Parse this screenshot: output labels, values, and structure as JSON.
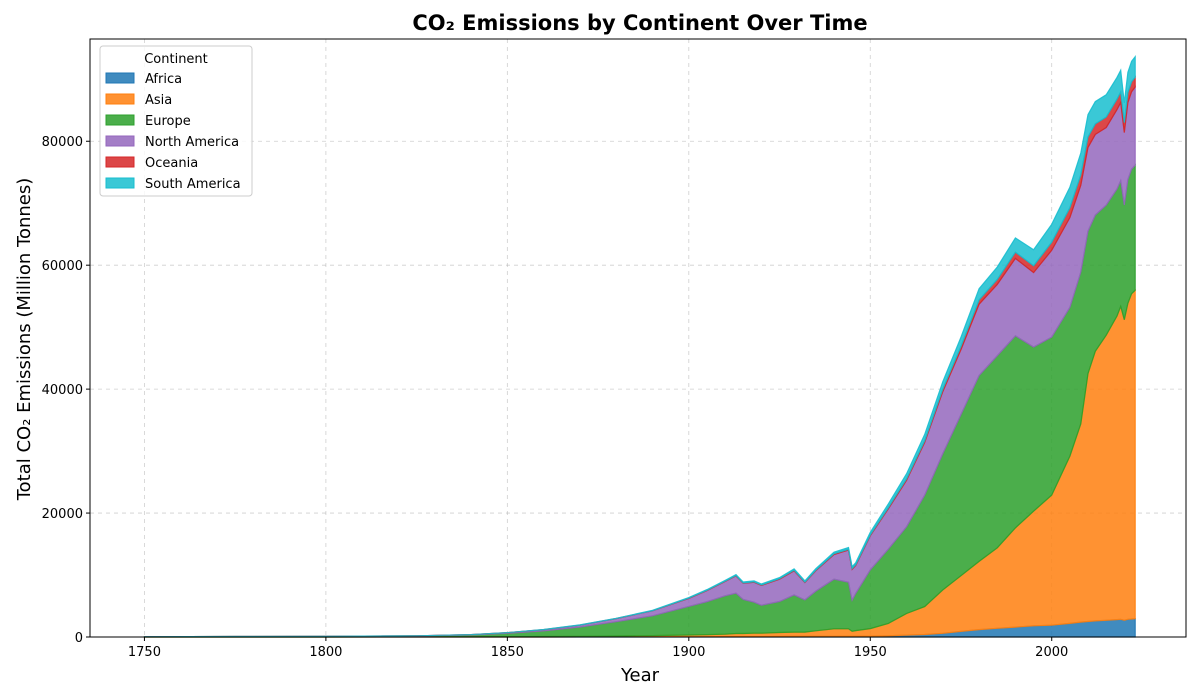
{
  "chart_data": {
    "type": "area",
    "stacked": true,
    "title": "CO₂ Emissions by Continent Over Time",
    "xlabel": "Year",
    "ylabel": "Total CO₂ Emissions (Million Tonnes)",
    "xlim": [
      1735,
      2037
    ],
    "ylim": [
      0,
      96500
    ],
    "xticks": [
      1750,
      1800,
      1850,
      1900,
      1950,
      2000
    ],
    "yticks": [
      0,
      20000,
      40000,
      60000,
      80000
    ],
    "grid": true,
    "legend": {
      "title": "Continent",
      "position": "top-left"
    },
    "x": [
      1750,
      1775,
      1800,
      1825,
      1840,
      1850,
      1860,
      1870,
      1880,
      1890,
      1900,
      1905,
      1910,
      1913,
      1915,
      1918,
      1920,
      1925,
      1929,
      1932,
      1935,
      1940,
      1944,
      1945,
      1946,
      1950,
      1955,
      1960,
      1965,
      1970,
      1975,
      1980,
      1985,
      1990,
      1995,
      2000,
      2005,
      2008,
      2010,
      2012,
      2015,
      2018,
      2019,
      2020,
      2021,
      2022,
      2023
    ],
    "series": [
      {
        "name": "Africa",
        "color": "#1f77b4",
        "values": [
          0,
          0,
          0,
          0,
          0,
          0,
          5,
          10,
          15,
          20,
          30,
          40,
          50,
          60,
          60,
          70,
          70,
          80,
          90,
          90,
          100,
          120,
          130,
          120,
          130,
          150,
          200,
          300,
          400,
          600,
          900,
          1200,
          1400,
          1600,
          1800,
          1900,
          2200,
          2400,
          2500,
          2600,
          2700,
          2800,
          2850,
          2700,
          2850,
          2900,
          2950
        ]
      },
      {
        "name": "Asia",
        "color": "#ff7f0e",
        "values": [
          0,
          0,
          0,
          20,
          30,
          50,
          80,
          100,
          150,
          200,
          300,
          350,
          400,
          500,
          500,
          550,
          550,
          650,
          700,
          700,
          900,
          1200,
          1200,
          800,
          900,
          1200,
          2000,
          3500,
          4500,
          7000,
          9000,
          11000,
          13000,
          16000,
          18500,
          21000,
          27000,
          32000,
          40000,
          43500,
          46000,
          49000,
          50500,
          48500,
          51000,
          52500,
          53000
        ]
      },
      {
        "name": "Europe",
        "color": "#2ca02c",
        "values": [
          50,
          80,
          100,
          150,
          300,
          550,
          900,
          1500,
          2300,
          3200,
          4600,
          5300,
          6200,
          6500,
          5500,
          5000,
          4500,
          5000,
          6000,
          5200,
          6400,
          8000,
          7500,
          5000,
          6000,
          9500,
          12000,
          14000,
          18000,
          22000,
          26000,
          30000,
          31000,
          31000,
          26500,
          25500,
          24000,
          24500,
          23000,
          22000,
          21000,
          20500,
          20300,
          18500,
          20000,
          20100,
          20200
        ]
      },
      {
        "name": "North America",
        "color": "#9467bd",
        "values": [
          0,
          0,
          0,
          20,
          50,
          100,
          200,
          300,
          500,
          800,
          1300,
          1800,
          2300,
          2800,
          2600,
          3200,
          3200,
          3600,
          3900,
          2800,
          3300,
          4000,
          5200,
          5000,
          4500,
          5500,
          6500,
          7500,
          8500,
          10000,
          10500,
          11500,
          11500,
          12500,
          12000,
          14000,
          14500,
          14000,
          13500,
          13000,
          12500,
          12800,
          12600,
          11700,
          12400,
          12500,
          12600
        ]
      },
      {
        "name": "Oceania",
        "color": "#d62728",
        "values": [
          0,
          0,
          0,
          0,
          0,
          5,
          10,
          15,
          20,
          30,
          50,
          55,
          65,
          70,
          75,
          80,
          80,
          90,
          100,
          90,
          100,
          120,
          130,
          130,
          130,
          150,
          200,
          250,
          300,
          400,
          500,
          700,
          800,
          1000,
          1100,
          1300,
          1600,
          1700,
          1700,
          1700,
          1700,
          1700,
          1700,
          1600,
          1600,
          1600,
          1600
        ]
      },
      {
        "name": "South America",
        "color": "#17becf",
        "values": [
          0,
          0,
          0,
          0,
          5,
          10,
          20,
          30,
          40,
          60,
          80,
          100,
          120,
          140,
          140,
          150,
          150,
          170,
          200,
          180,
          220,
          260,
          280,
          300,
          320,
          400,
          600,
          800,
          1000,
          1200,
          1500,
          1800,
          2000,
          2300,
          2600,
          2900,
          3300,
          3500,
          3600,
          3600,
          3600,
          3500,
          3500,
          3200,
          3300,
          3300,
          3300
        ]
      }
    ]
  }
}
